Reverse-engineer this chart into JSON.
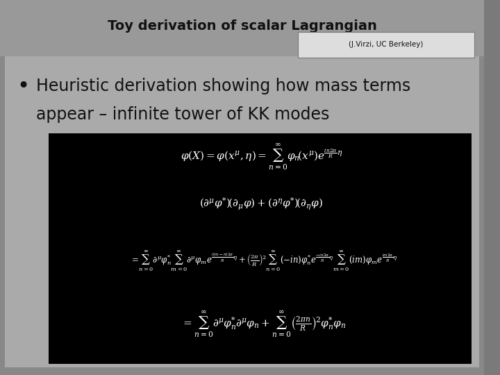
{
  "background_color": "#7a7a7a",
  "slide_bg": "#909090",
  "title": "Toy derivation of scalar Lagrangian",
  "title_fontsize": 14,
  "author_box_text": "(J.Virzi, UC Berkeley)",
  "bullet_text_line1": "Heuristic derivation showing how mass terms",
  "bullet_text_line2": "appear – infinite tower of KK modes",
  "bullet_fontsize": 17,
  "eq_box_bg": "#000000",
  "eq_color": "#ffffff"
}
